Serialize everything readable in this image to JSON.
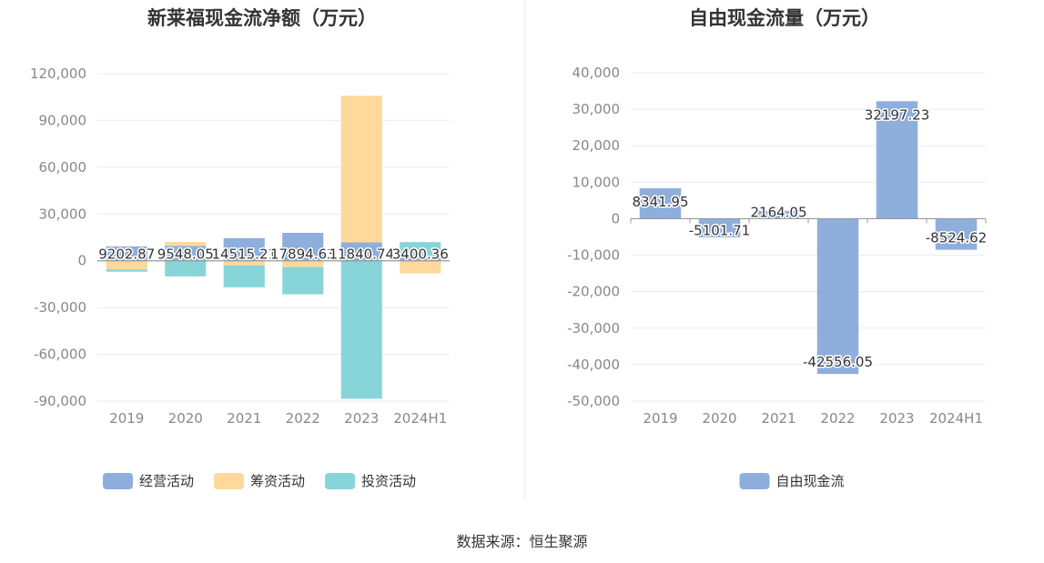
{
  "source_text": "数据来源：恒生聚源",
  "chart_data": [
    {
      "type": "bar",
      "stacked": true,
      "title": "新莱福现金流净额（万元）",
      "categories": [
        "2019",
        "2020",
        "2021",
        "2022",
        "2023",
        "2024H1"
      ],
      "ylim": [
        -90000,
        120000
      ],
      "yticks": [
        120000,
        90000,
        60000,
        30000,
        0,
        -30000,
        -60000,
        -90000
      ],
      "ytick_labels": [
        "120,000",
        "90,000",
        "60,000",
        "30,000",
        "0",
        "-30,000",
        "-60,000",
        "-90,000"
      ],
      "grid": true,
      "legend_position": "bottom",
      "series": [
        {
          "name": "经营活动",
          "color": "#8eaedc",
          "values": [
            9202.87,
            9548.05,
            14515.21,
            17894.63,
            11840.74,
            3400.36
          ]
        },
        {
          "name": "筹资活动",
          "color": "#fed99b",
          "values": [
            -5500,
            2500,
            -3000,
            -4000,
            94000,
            -8000
          ]
        },
        {
          "name": "投资活动",
          "color": "#88d5d9",
          "values": [
            -1500,
            -10000,
            -14000,
            -17500,
            -88500,
            8600
          ]
        }
      ],
      "data_labels": [
        "9202.87",
        "9548.05",
        "14515.21",
        "17894.63",
        "11840.74",
        "3400.36"
      ]
    },
    {
      "type": "bar",
      "title": "自由现金流量（万元）",
      "categories": [
        "2019",
        "2020",
        "2021",
        "2022",
        "2023",
        "2024H1"
      ],
      "ylim": [
        -50000,
        40000
      ],
      "yticks": [
        40000,
        30000,
        20000,
        10000,
        0,
        -10000,
        -20000,
        -30000,
        -40000,
        -50000
      ],
      "ytick_labels": [
        "40,000",
        "30,000",
        "20,000",
        "10,000",
        "0",
        "-10,000",
        "-20,000",
        "-30,000",
        "-40,000",
        "-50,000"
      ],
      "grid": true,
      "legend_position": "bottom",
      "series": [
        {
          "name": "自由现金流",
          "color": "#8eaedc",
          "values": [
            8341.95,
            -5101.71,
            2164.05,
            -42556.05,
            32197.23,
            -8524.62
          ]
        }
      ],
      "data_labels": [
        "8341.95",
        "-5101.71",
        "2164.05",
        "-42556.05",
        "32197.23",
        "-8524.62"
      ]
    }
  ]
}
